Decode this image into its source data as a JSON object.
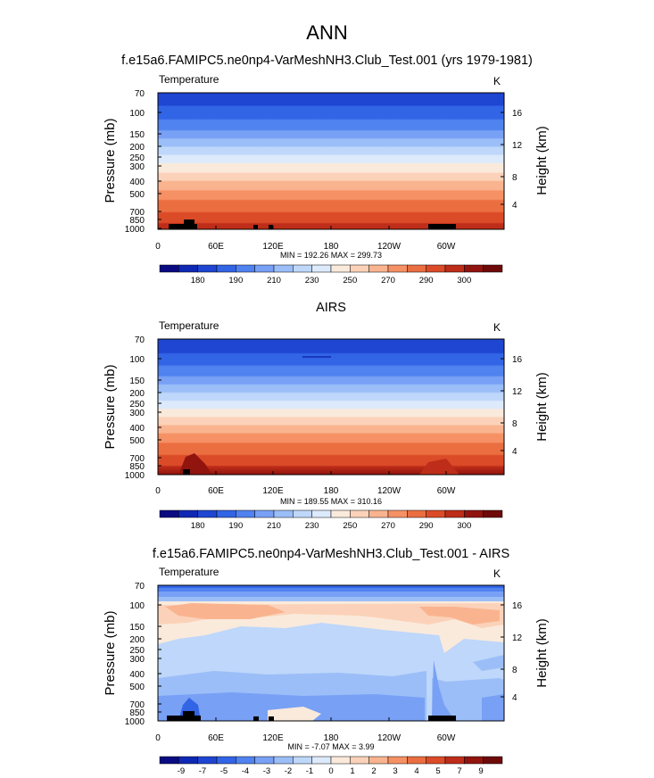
{
  "figure": {
    "title": "ANN",
    "panel_titles": [
      "f.e15a6.FAMIPC5.ne0np4-VarMeshNH3.Club_Test.001 (yrs 1979-1981)",
      "AIRS",
      "f.e15a6.FAMIPC5.ne0np4-VarMeshNH3.Club_Test.001 - AIRS"
    ]
  },
  "chart_data": [
    {
      "type": "heatmap",
      "title": "f.e15a6.FAMIPC5.ne0np4-VarMeshNH3.Club_Test.001 (yrs 1979-1981)",
      "variable": "Temperature",
      "units": "K",
      "ylabel": "Pressure (mb)",
      "ylabel_right": "Height (km)",
      "x_ticks": [
        "0",
        "60E",
        "120E",
        "180",
        "120W",
        "60W"
      ],
      "y_ticks": [
        "70",
        "100",
        "150",
        "200",
        "250",
        "300",
        "400",
        "500",
        "700",
        "850",
        "1000"
      ],
      "y_ticks_right": [
        "16",
        "12",
        "8",
        "4"
      ],
      "min_max": "MIN = 192.26  MAX = 299.73",
      "colorbar": {
        "colors": [
          "#0a0a82",
          "#0f28b4",
          "#1e46d2",
          "#3264e6",
          "#5082f0",
          "#78a0f5",
          "#9bbef8",
          "#bed7fa",
          "#dceafc",
          "#faeadc",
          "#fbd2b9",
          "#f9b48f",
          "#f59164",
          "#eb6e41",
          "#dc4b28",
          "#be2d19",
          "#91140f",
          "#6e0a0a"
        ],
        "labels": [
          "180",
          "190",
          "210",
          "230",
          "250",
          "270",
          "290",
          "300"
        ]
      }
    },
    {
      "type": "heatmap",
      "title": "AIRS",
      "variable": "Temperature",
      "units": "K",
      "ylabel": "Pressure (mb)",
      "ylabel_right": "Height (km)",
      "x_ticks": [
        "0",
        "60E",
        "120E",
        "180",
        "120W",
        "60W"
      ],
      "y_ticks": [
        "70",
        "100",
        "150",
        "200",
        "250",
        "300",
        "400",
        "500",
        "700",
        "850",
        "1000"
      ],
      "y_ticks_right": [
        "16",
        "12",
        "8",
        "4"
      ],
      "min_max": "MIN = 189.55  MAX = 310.16",
      "colorbar": {
        "colors": [
          "#0a0a82",
          "#0f28b4",
          "#1e46d2",
          "#3264e6",
          "#5082f0",
          "#78a0f5",
          "#9bbef8",
          "#bed7fa",
          "#dceafc",
          "#faeadc",
          "#fbd2b9",
          "#f9b48f",
          "#f59164",
          "#eb6e41",
          "#dc4b28",
          "#be2d19",
          "#91140f",
          "#6e0a0a"
        ],
        "labels": [
          "180",
          "190",
          "210",
          "230",
          "250",
          "270",
          "290",
          "300"
        ]
      }
    },
    {
      "type": "heatmap",
      "title": "f.e15a6.FAMIPC5.ne0np4-VarMeshNH3.Club_Test.001 - AIRS",
      "variable": "Temperature",
      "units": "K",
      "ylabel": "Pressure (mb)",
      "ylabel_right": "Height (km)",
      "x_ticks": [
        "0",
        "60E",
        "120E",
        "180",
        "120W",
        "60W"
      ],
      "y_ticks": [
        "70",
        "100",
        "150",
        "200",
        "250",
        "300",
        "400",
        "500",
        "700",
        "850",
        "1000"
      ],
      "y_ticks_right": [
        "16",
        "12",
        "8",
        "4"
      ],
      "min_max": "MIN = -7.07  MAX =  3.99",
      "colorbar": {
        "colors": [
          "#0a0a82",
          "#0f28b4",
          "#1e46d2",
          "#3264e6",
          "#5082f0",
          "#78a0f5",
          "#9bbef8",
          "#bed7fa",
          "#dceafc",
          "#faeadc",
          "#fbd2b9",
          "#f9b48f",
          "#f59164",
          "#eb6e41",
          "#dc4b28",
          "#be2d19",
          "#91140f",
          "#6e0a0a"
        ],
        "labels": [
          "-9",
          "-7",
          "-5",
          "-4",
          "-3",
          "-2",
          "-1",
          "0",
          "1",
          "2",
          "3",
          "4",
          "5",
          "7",
          "9"
        ]
      }
    }
  ]
}
